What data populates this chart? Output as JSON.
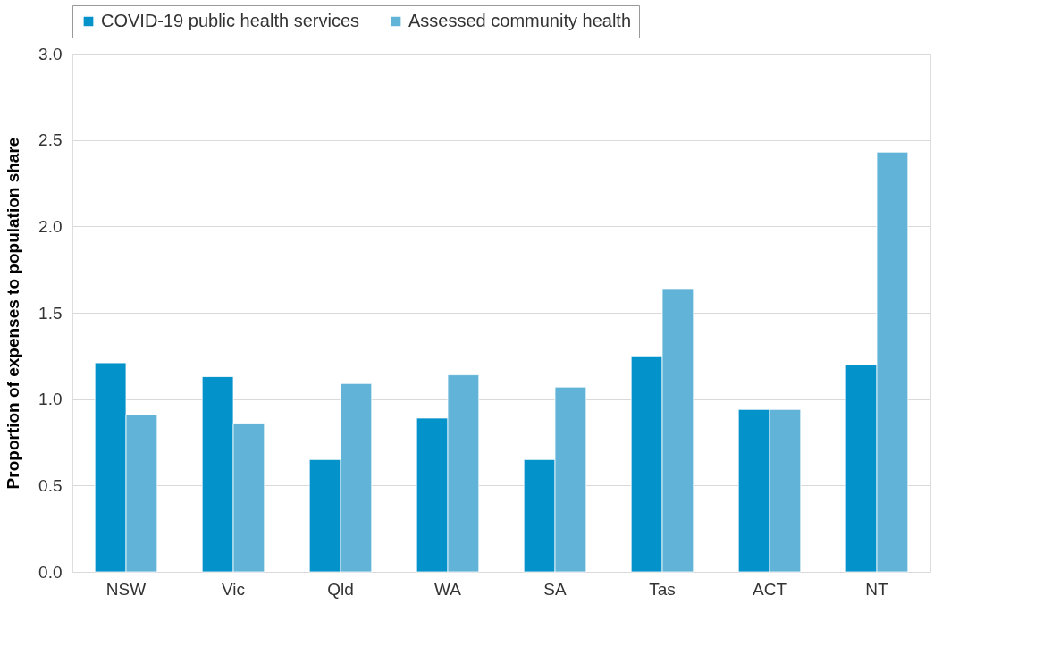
{
  "chart_data": {
    "type": "bar",
    "ylabel": "Proportion of expenses to population share",
    "categories": [
      "NSW",
      "Vic",
      "Qld",
      "WA",
      "SA",
      "Tas",
      "ACT",
      "NT"
    ],
    "series": [
      {
        "name": "COVID-19 public health services",
        "color": "#0392c9",
        "values": [
          1.21,
          1.13,
          0.65,
          0.89,
          0.65,
          1.25,
          0.94,
          1.2
        ]
      },
      {
        "name": "Assessed community health",
        "color": "#61b4d8",
        "values": [
          0.91,
          0.86,
          1.09,
          1.14,
          1.07,
          1.64,
          0.94,
          2.43
        ]
      }
    ],
    "ylim": [
      0,
      3
    ],
    "yticks": [
      {
        "value": 0,
        "label": "0.0"
      },
      {
        "value": 0.5,
        "label": "0.5"
      },
      {
        "value": 1,
        "label": "1.0"
      },
      {
        "value": 1.5,
        "label": "1.5"
      },
      {
        "value": 2,
        "label": "2.0"
      },
      {
        "value": 2.5,
        "label": "2.5"
      },
      {
        "value": 3,
        "label": "3.0"
      }
    ],
    "grid": "y",
    "legend": "top"
  }
}
